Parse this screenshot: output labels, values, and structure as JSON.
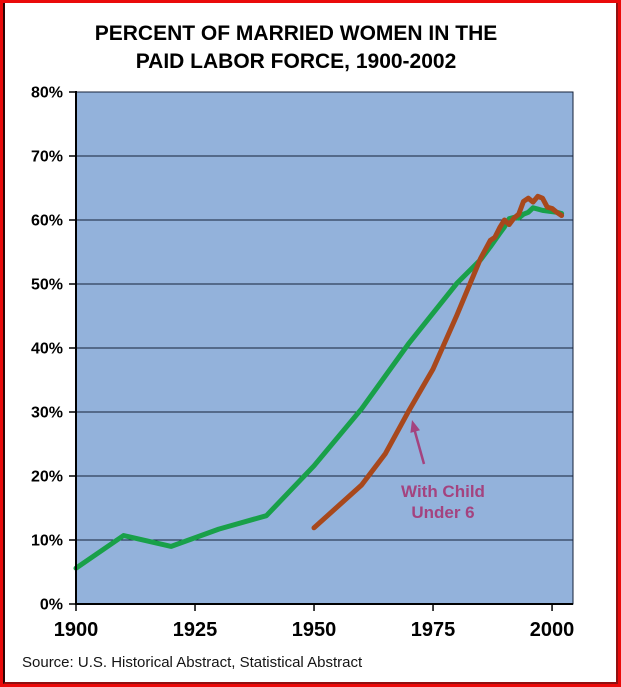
{
  "title": {
    "line1": "PERCENT OF MARRIED WOMEN IN THE",
    "line2": "PAID LABOR FORCE, 1900-2002"
  },
  "source": "Source: U.S. Historical Abstract, Statistical Abstract",
  "annotation": {
    "line1": "With Child",
    "line2": "Under 6",
    "color": "#a4437f"
  },
  "colors": {
    "frame_red": "#ea0a0a",
    "plot_background": "#93b2db",
    "gridline": "#16213a",
    "axis": "#000000",
    "married_women_line": "#19a049",
    "with_child_line": "#a8481c"
  },
  "chart_data": {
    "type": "line",
    "title": "PERCENT OF MARRIED WOMEN IN THE PAID LABOR FORCE, 1900-2002",
    "xlabel": "",
    "ylabel": "",
    "xlim": [
      1900,
      2004.4
    ],
    "ylim": [
      0,
      80
    ],
    "x_ticks": [
      1900,
      1925,
      1950,
      1975,
      2000
    ],
    "x_tick_labels": [
      "1900",
      "1925",
      "1950",
      "1975",
      "2000"
    ],
    "y_ticks": [
      0,
      10,
      20,
      30,
      40,
      50,
      60,
      70,
      80
    ],
    "y_tick_labels": [
      "0%",
      "10%",
      "20%",
      "30%",
      "40%",
      "50%",
      "60%",
      "70%",
      "80%"
    ],
    "grid": true,
    "legend": "none (annotation arrow labels the 'With Child Under 6' series)",
    "plot_bg": "#93b2db",
    "grid_color": "#16213a",
    "series": [
      {
        "name": "Married women",
        "id": "married-women-line",
        "color": "#19a049",
        "points": [
          [
            1900,
            5.6
          ],
          [
            1910,
            10.7
          ],
          [
            1920,
            9.0
          ],
          [
            1930,
            11.7
          ],
          [
            1940,
            13.8
          ],
          [
            1950,
            21.6
          ],
          [
            1960,
            30.5
          ],
          [
            1970,
            40.8
          ],
          [
            1980,
            50.1
          ],
          [
            1985,
            53.8
          ],
          [
            1987,
            55.8
          ],
          [
            1989,
            57.9
          ],
          [
            1990,
            58.9
          ],
          [
            1991,
            60.2
          ],
          [
            1992,
            60.4
          ],
          [
            1993,
            60.3
          ],
          [
            1994,
            60.9
          ],
          [
            1995,
            61.2
          ],
          [
            1996,
            61.9
          ],
          [
            1997,
            61.7
          ],
          [
            1998,
            61.5
          ],
          [
            1999,
            61.4
          ],
          [
            2000,
            61.3
          ],
          [
            2001,
            61.2
          ],
          [
            2002,
            61.0
          ]
        ]
      },
      {
        "name": "With Child Under 6",
        "id": "with-child-under-6-line",
        "color": "#a8481c",
        "points": [
          [
            1950,
            11.9
          ],
          [
            1960,
            18.6
          ],
          [
            1965,
            23.5
          ],
          [
            1970,
            30.3
          ],
          [
            1975,
            36.7
          ],
          [
            1980,
            45.1
          ],
          [
            1985,
            54.0
          ],
          [
            1987,
            56.8
          ],
          [
            1988,
            57.3
          ],
          [
            1989,
            58.8
          ],
          [
            1990,
            60.0
          ],
          [
            1991,
            59.3
          ],
          [
            1992,
            60.3
          ],
          [
            1993,
            60.9
          ],
          [
            1994,
            62.9
          ],
          [
            1995,
            63.4
          ],
          [
            1996,
            62.8
          ],
          [
            1997,
            63.7
          ],
          [
            1998,
            63.4
          ],
          [
            1999,
            62.0
          ],
          [
            2000,
            61.8
          ],
          [
            2001,
            61.2
          ],
          [
            2002,
            60.7
          ]
        ]
      }
    ]
  }
}
